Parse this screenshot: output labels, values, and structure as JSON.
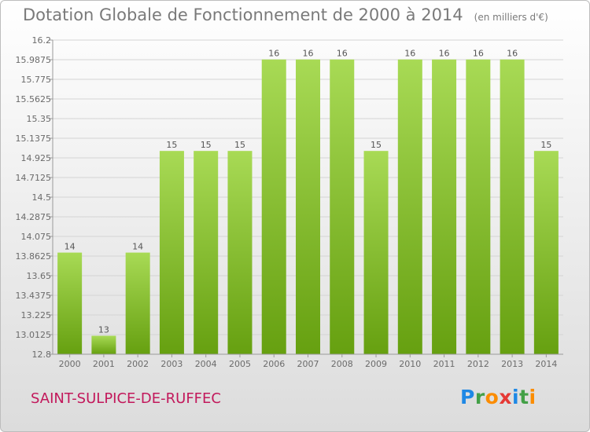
{
  "header": {
    "title": "Dotation Globale de Fonctionnement de 2000 à 2014",
    "unit": "(en milliers d'€)"
  },
  "footer": {
    "commune": "SAINT-SULPICE-DE-RUFFEC",
    "logo_letters": [
      "P",
      "r",
      "o",
      "x",
      "i",
      "t",
      "i"
    ],
    "logo_colors": [
      "#1e88e5",
      "#43a047",
      "#fb8c00",
      "#e53935",
      "#1e88e5",
      "#43a047",
      "#fb8c00"
    ]
  },
  "colors": {
    "bar_top": "#a8da55",
    "bar_bottom": "#66a010",
    "grid": "#d4d4d4",
    "axis": "#9a9a9a"
  },
  "chart_data": {
    "type": "bar",
    "title": "Dotation Globale de Fonctionnement de 2000 à 2014",
    "subtitle": "(en milliers d'€)",
    "xlabel": "",
    "ylabel": "",
    "categories": [
      "2000",
      "2001",
      "2002",
      "2003",
      "2004",
      "2005",
      "2006",
      "2007",
      "2008",
      "2009",
      "2010",
      "2011",
      "2012",
      "2013",
      "2014"
    ],
    "values": [
      14,
      13,
      14,
      15,
      15,
      15,
      16,
      16,
      16,
      15,
      16,
      16,
      16,
      16,
      15
    ],
    "data_labels": [
      "14",
      "13",
      "14",
      "15",
      "15",
      "15",
      "16",
      "16",
      "16",
      "15",
      "16",
      "16",
      "16",
      "16",
      "15"
    ],
    "plotted_values": [
      13.9,
      13.0,
      13.9,
      15.0,
      15.0,
      15.0,
      15.99,
      15.99,
      15.99,
      15.0,
      15.99,
      15.99,
      15.99,
      15.99,
      15.0
    ],
    "ylim": [
      12.8,
      16.2
    ],
    "yticks": [
      12.8,
      13.0125,
      13.225,
      13.4375,
      13.65,
      13.8625,
      14.075,
      14.2875,
      14.5,
      14.7125,
      14.925,
      15.1375,
      15.35,
      15.5625,
      15.775,
      15.9875,
      16.2
    ],
    "ytick_labels": [
      "12.8",
      "13.0125",
      "13.225",
      "13.4375",
      "13.65",
      "13.8625",
      "14.075",
      "14.2875",
      "14.5",
      "14.7125",
      "14.925",
      "15.1375",
      "15.35",
      "15.5625",
      "15.775",
      "15.9875",
      "16.2"
    ],
    "grid": true,
    "legend": "none"
  }
}
